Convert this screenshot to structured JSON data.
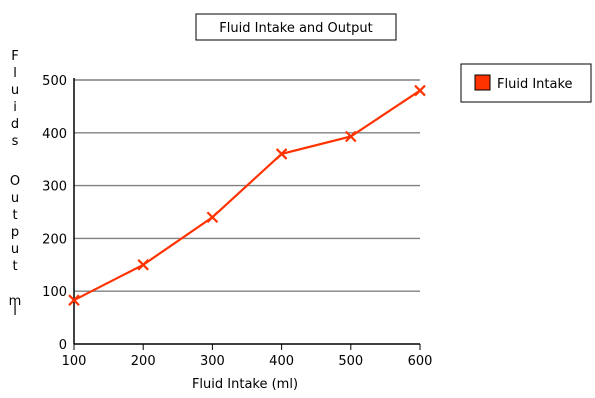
{
  "chart_data": {
    "type": "line",
    "title": "Fluid Intake and Output",
    "xlabel": "Fluid Intake (ml)",
    "ylabel": "Fluids Output ml",
    "xlim": [
      100,
      600
    ],
    "ylim": [
      0,
      500
    ],
    "x_ticks": [
      100,
      200,
      300,
      400,
      500,
      600
    ],
    "y_ticks": [
      0,
      100,
      200,
      300,
      400,
      500
    ],
    "grid": "horizontal",
    "legend_position": "right",
    "series": [
      {
        "name": "Fluid Intake",
        "color": "#ff3300",
        "marker": "x",
        "x": [
          100,
          200,
          300,
          400,
          500,
          600
        ],
        "y": [
          83,
          150,
          240,
          360,
          393,
          480
        ]
      }
    ]
  }
}
